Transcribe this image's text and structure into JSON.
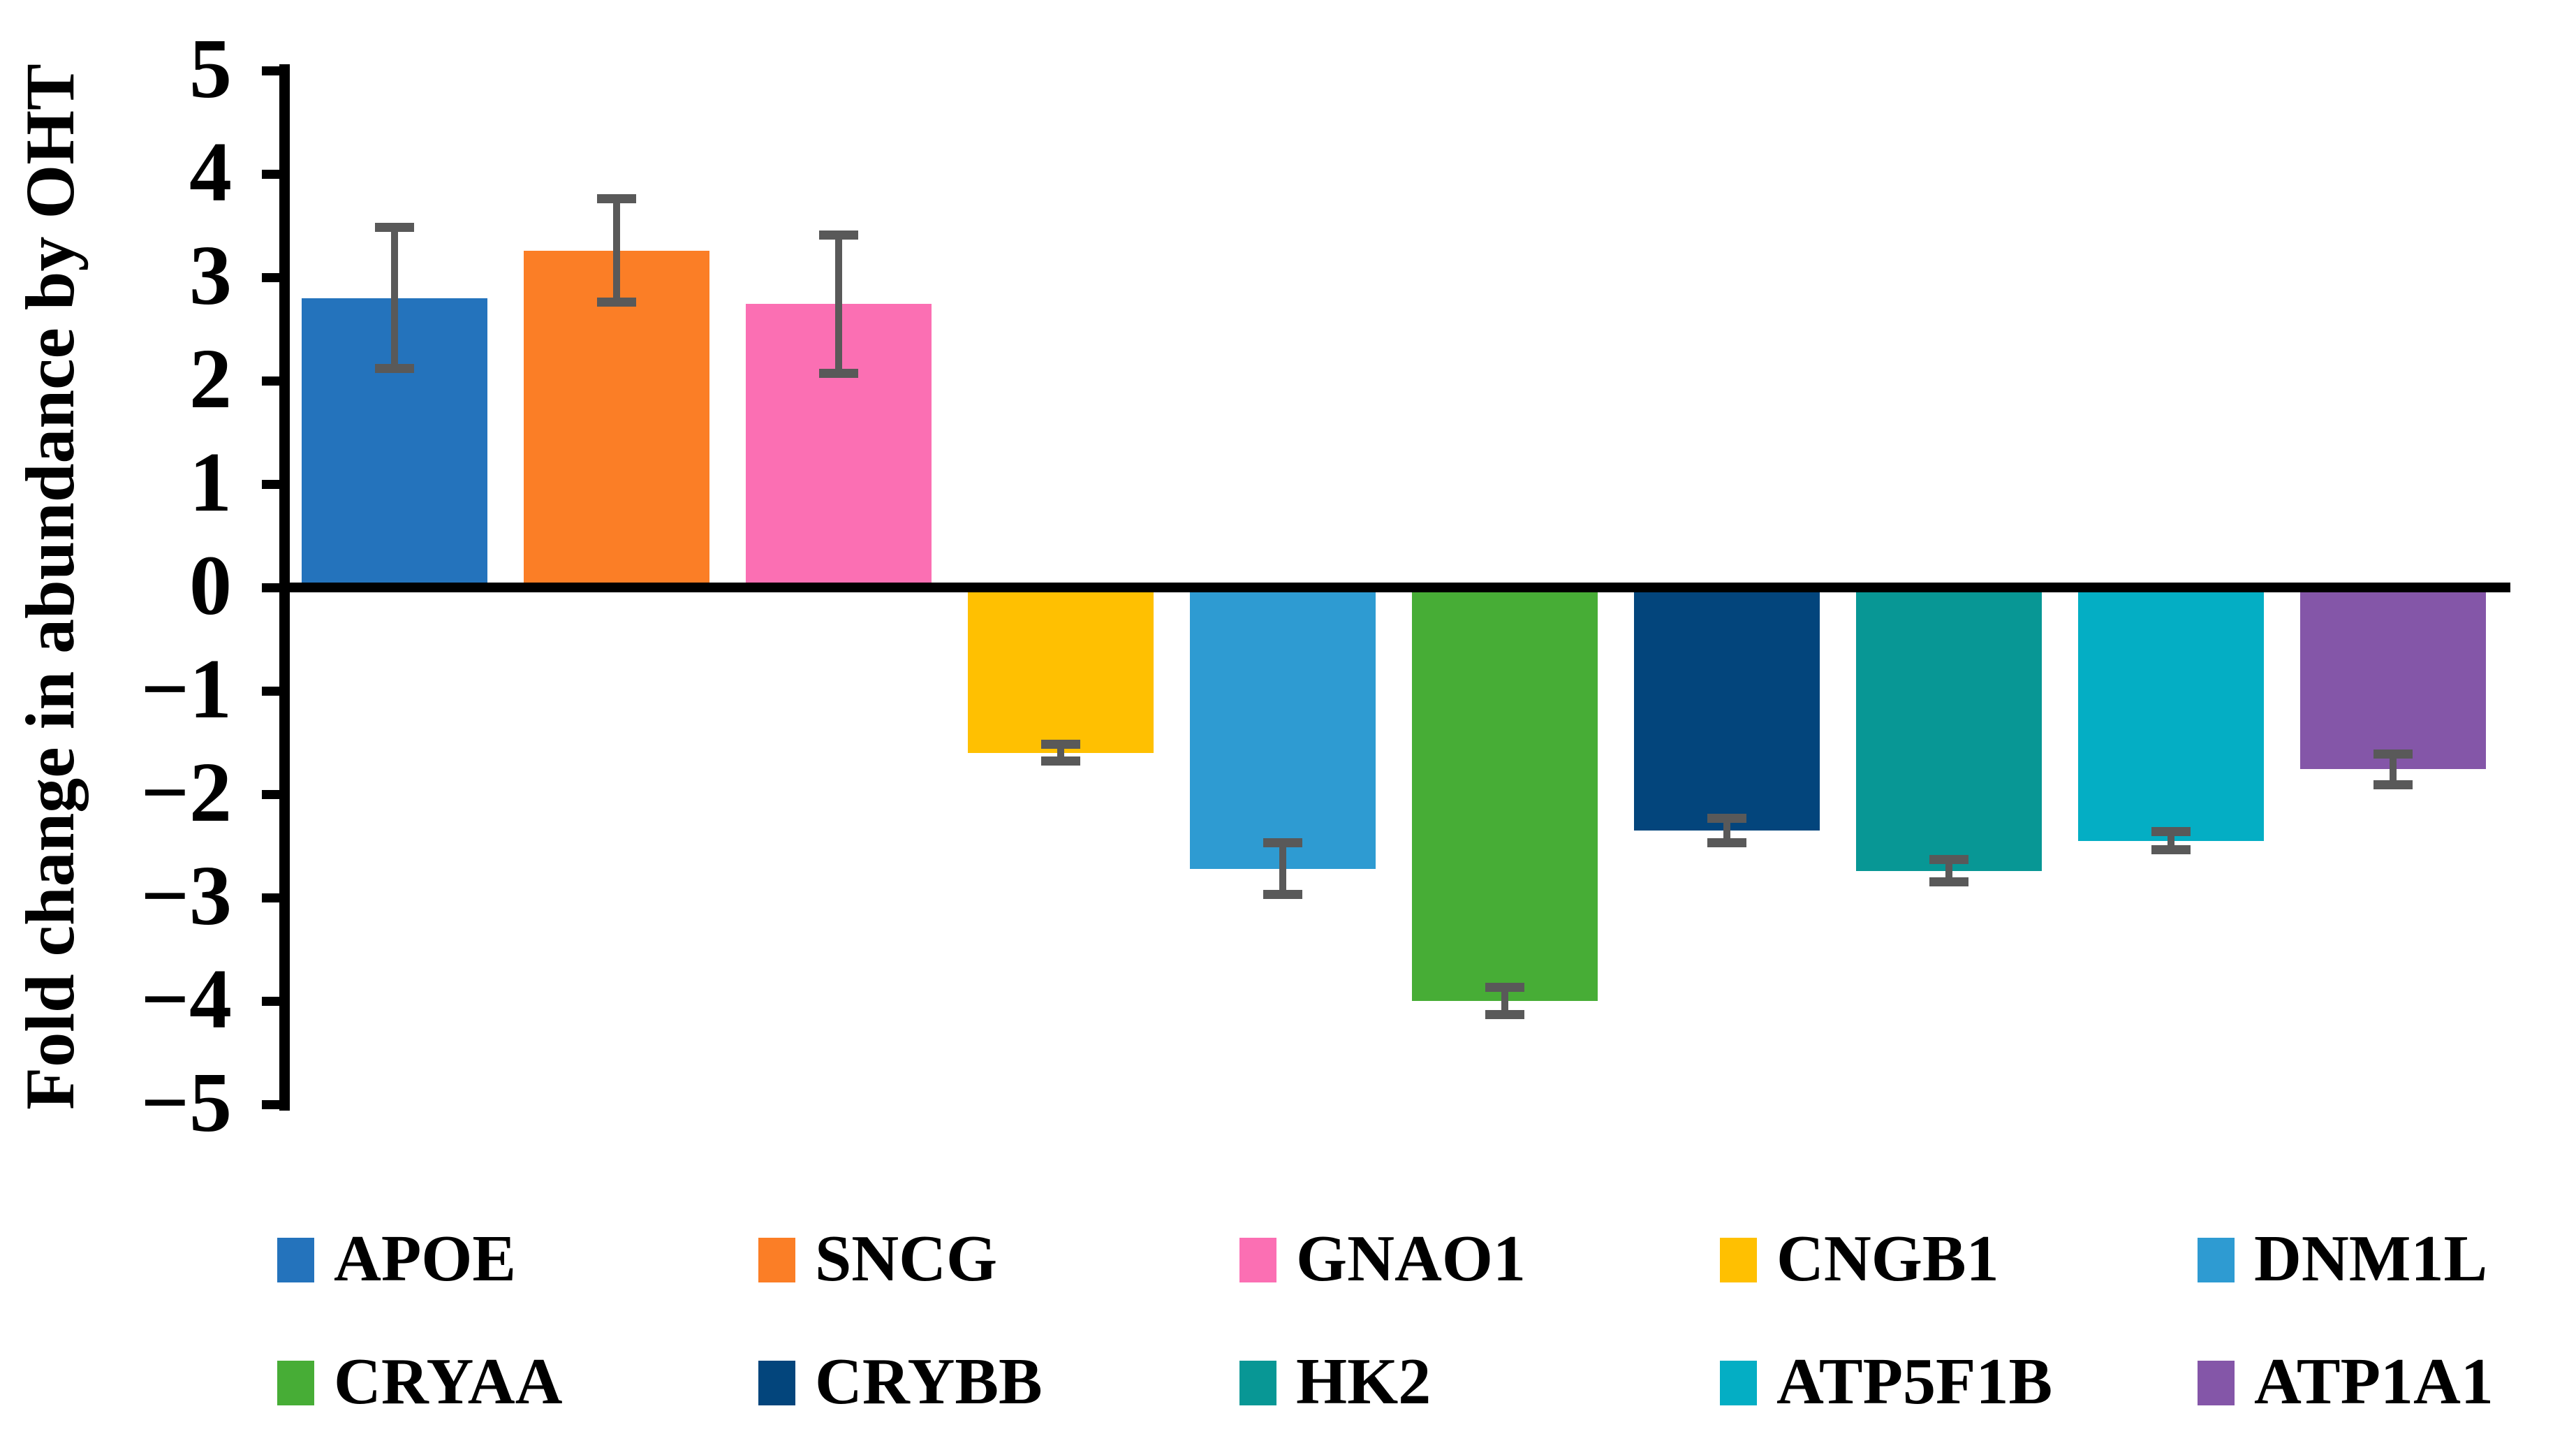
{
  "chart_data": {
    "type": "bar",
    "title": "",
    "xlabel": "",
    "ylabel": "Fold change in abundance by OHT",
    "categories": [
      "APOE",
      "SNCG",
      "GNAO1",
      "CNGB1",
      "DNM1L",
      "CRYAA",
      "CRYBB",
      "HK2",
      "ATP5F1B",
      "ATP1A1"
    ],
    "values": [
      2.8,
      3.26,
      2.74,
      -1.6,
      -2.72,
      -4.0,
      -2.35,
      -2.74,
      -2.45,
      -1.76
    ],
    "errors": [
      0.68,
      0.5,
      0.67,
      0.08,
      0.25,
      0.13,
      0.12,
      0.11,
      0.09,
      0.15
    ],
    "colors": [
      "#2473BC",
      "#FB7E26",
      "#FB6FB3",
      "#FFC001",
      "#2E9BD2",
      "#47AD36",
      "#03457C",
      "#089795",
      "#04AEC4",
      "#8456A8"
    ],
    "ylim": [
      -5,
      5
    ],
    "yticks": [
      5,
      4,
      3,
      2,
      1,
      0,
      -1,
      -2,
      -3,
      -4,
      -5
    ],
    "ytick_labels": [
      "5",
      "4",
      "3",
      "2",
      "1",
      "0",
      "−1",
      "−2",
      "−3",
      "−4",
      "−5"
    ],
    "grid": false,
    "legend_position": "bottom",
    "legend_rows": [
      [
        "APOE",
        "SNCG",
        "GNAO1",
        "CNGB1",
        "DNM1L"
      ],
      [
        "CRYAA",
        "CRYBB",
        "HK2",
        "ATP5F1B",
        "ATP1A1"
      ]
    ],
    "error_bar_color": "#595959",
    "axis_color": "#000000",
    "background_color": "#FFFFFF"
  }
}
